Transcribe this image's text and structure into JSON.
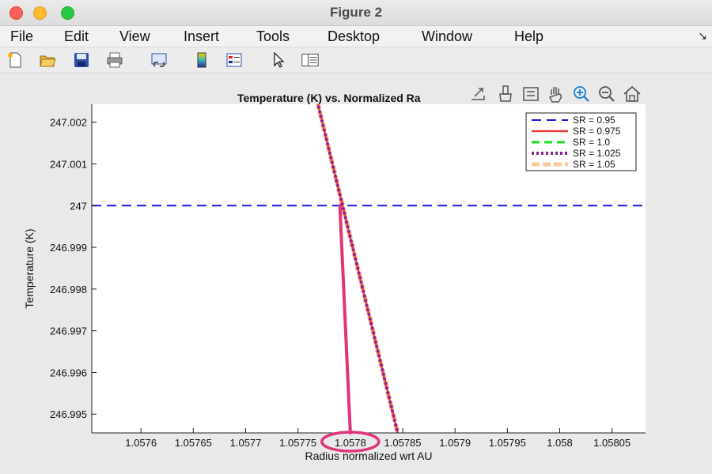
{
  "window": {
    "title": "Figure 2",
    "buttons": [
      "close",
      "minimize",
      "maximize"
    ]
  },
  "menu": {
    "items": [
      "File",
      "Edit",
      "View",
      "Insert",
      "Tools",
      "Desktop",
      "Window",
      "Help"
    ],
    "corner_icon": "↘"
  },
  "toolbar": {
    "icons": [
      "new-figure-icon",
      "open-file-icon",
      "save-icon",
      "print-icon",
      "link-plot-icon",
      "colorbar-icon",
      "legend-icon",
      "pointer-icon",
      "property-inspector-icon"
    ]
  },
  "axes_toolbar": {
    "icons": [
      "export-icon",
      "brush-icon",
      "data-tips-icon",
      "pan-icon",
      "zoom-in-icon",
      "zoom-out-icon",
      "home-icon"
    ]
  },
  "colors": {
    "sr_095": "#1a1ae0",
    "sr_0975": "#e83a3a",
    "sr_10": "#22dd22",
    "sr_1025": "#8e1f9a",
    "sr_105": "#f9c99a",
    "annotation": "#e0337a"
  },
  "chart_data": {
    "type": "line",
    "title": "Temperature (K) vs. Normalized Ra",
    "xlabel": "Radius normalized wrt AU",
    "ylabel": "Temperature (K)",
    "xlim": [
      1.057553,
      1.058082
    ],
    "ylim": [
      246.99455,
      247.00243
    ],
    "xticks": [
      1.0576,
      1.05765,
      1.0577,
      1.05775,
      1.0578,
      1.05785,
      1.0579,
      1.05795,
      1.058,
      1.05805
    ],
    "xtick_labels": [
      "1.0576",
      "1.05765",
      "1.0577",
      "1.05775",
      "1.0578",
      "1.05785",
      "1.0579",
      "1.05795",
      "1.058",
      "1.05805"
    ],
    "yticks": [
      246.995,
      246.996,
      246.997,
      246.998,
      246.999,
      247,
      247.001,
      247.002
    ],
    "ytick_labels": [
      "246.995",
      "246.996",
      "246.997",
      "246.998",
      "246.999",
      "247",
      "247.001",
      "247.002"
    ],
    "grid": false,
    "legend_position": "top-right",
    "series": [
      {
        "name": "SR = 0.95",
        "style": "solid",
        "x": [
          1.057553,
          1.058082
        ],
        "y": [
          247.0,
          247.0
        ]
      },
      {
        "name": "SR = 0.975",
        "style": "solid",
        "x": [
          1.0577684,
          1.0578457
        ],
        "y": [
          247.0025,
          246.9945
        ]
      },
      {
        "name": "SR = 1.0",
        "style": "dashed",
        "x": [],
        "y": []
      },
      {
        "name": "SR = 1.025",
        "style": "dotted",
        "x": [
          1.0577684,
          1.0578457
        ],
        "y": [
          247.0025,
          246.9945
        ]
      },
      {
        "name": "SR = 1.05",
        "style": "dashed",
        "x": [
          1.0577684,
          1.0578457
        ],
        "y": [
          247.0025,
          246.9945
        ]
      }
    ],
    "annotation": {
      "type": "arrow-and-ellipse",
      "from": [
        1.05779,
        247.0
      ],
      "to": [
        1.0578,
        246.99455
      ],
      "circled_tick": "1.0578"
    }
  }
}
